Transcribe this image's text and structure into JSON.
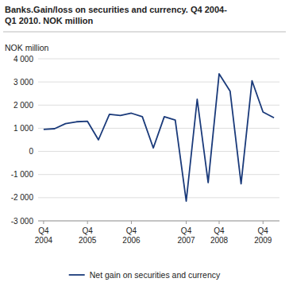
{
  "chart_data": {
    "type": "line",
    "title": "Banks.Gain/loss on securities and currency. Q4 2004-\nQ1 2010. NOK million",
    "ylabel": "NOK million",
    "categories": [
      "Q4\n2004",
      null,
      null,
      null,
      "Q4\n2005",
      null,
      null,
      null,
      "Q4\n2006",
      null,
      null,
      null,
      null,
      "Q4\n2007",
      null,
      null,
      "Q4\n2008",
      null,
      null,
      null,
      "Q4\n2009",
      null
    ],
    "series": [
      {
        "name": "Net gain on securities and currency",
        "color": "#1a3a7a",
        "values": [
          950,
          980,
          1200,
          1280,
          1300,
          500,
          1600,
          1550,
          1650,
          1500,
          150,
          1500,
          1350,
          -2150,
          2250,
          -1350,
          3350,
          2600,
          -1400,
          3050,
          1700,
          1450
        ]
      }
    ],
    "ylim": [
      -3000,
      4000
    ],
    "yticks": [
      {
        "value": -3000,
        "label": "-3 000"
      },
      {
        "value": -2000,
        "label": "-2 000"
      },
      {
        "value": -1000,
        "label": "-1 000"
      },
      0,
      {
        "value": 1000,
        "label": "1 000"
      },
      {
        "value": 2000,
        "label": "2 000"
      },
      {
        "value": 3000,
        "label": "3 000"
      },
      {
        "value": 4000,
        "label": "4 000"
      }
    ],
    "grid": true,
    "legend": "bottom"
  }
}
